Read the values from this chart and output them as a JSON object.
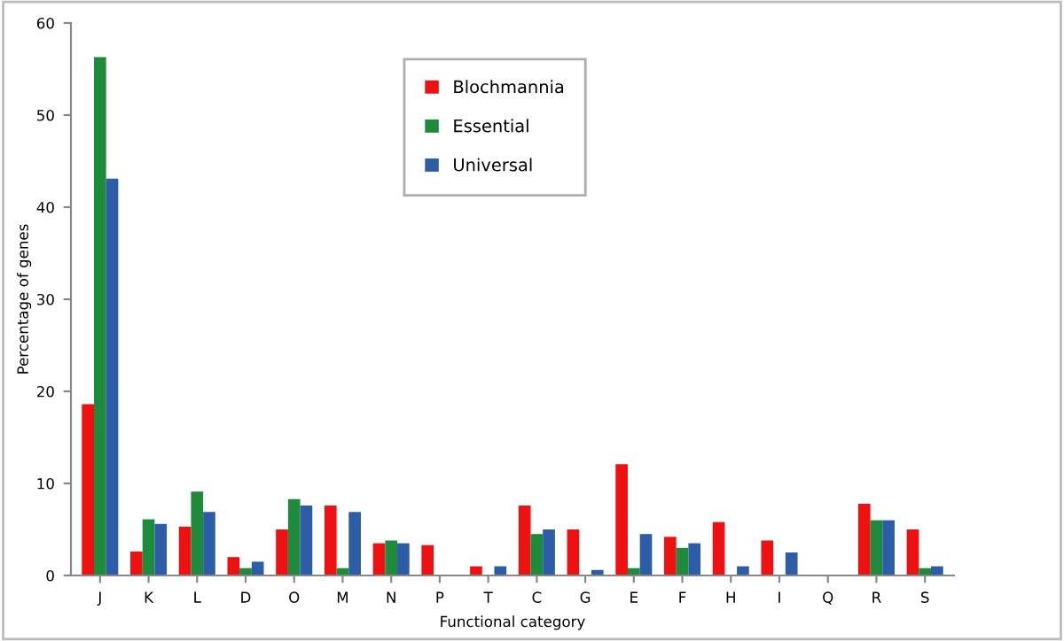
{
  "chart_data": {
    "type": "bar",
    "xlabel": "Functional category",
    "ylabel": "Percentage of genes",
    "categories": [
      "J",
      "K",
      "L",
      "D",
      "O",
      "M",
      "N",
      "P",
      "T",
      "C",
      "G",
      "E",
      "F",
      "H",
      "I",
      "Q",
      "R",
      "S"
    ],
    "series": [
      {
        "name": "Blochmannia",
        "color": "#ee1111",
        "values": [
          18.6,
          2.6,
          5.3,
          2.0,
          5.0,
          7.6,
          3.5,
          3.3,
          1.0,
          7.6,
          5.0,
          12.1,
          4.2,
          5.8,
          3.8,
          0,
          7.8,
          5.0
        ]
      },
      {
        "name": "Essential",
        "color": "#1e8a3c",
        "values": [
          56.3,
          6.1,
          9.1,
          0.8,
          8.3,
          0.8,
          3.8,
          0,
          0,
          4.5,
          0,
          0.8,
          3.0,
          0,
          0,
          0,
          6.0,
          0.8
        ]
      },
      {
        "name": "Universal",
        "color": "#2e5da8",
        "values": [
          43.1,
          5.6,
          6.9,
          1.5,
          7.6,
          6.9,
          3.5,
          0,
          1.0,
          5.0,
          0.6,
          4.5,
          3.5,
          1.0,
          2.5,
          0,
          6.0,
          1.0
        ]
      }
    ],
    "ylim": [
      0,
      60
    ],
    "yticks": [
      0,
      10,
      20,
      30,
      40,
      50,
      60
    ],
    "grid": false,
    "legend": "top center"
  }
}
